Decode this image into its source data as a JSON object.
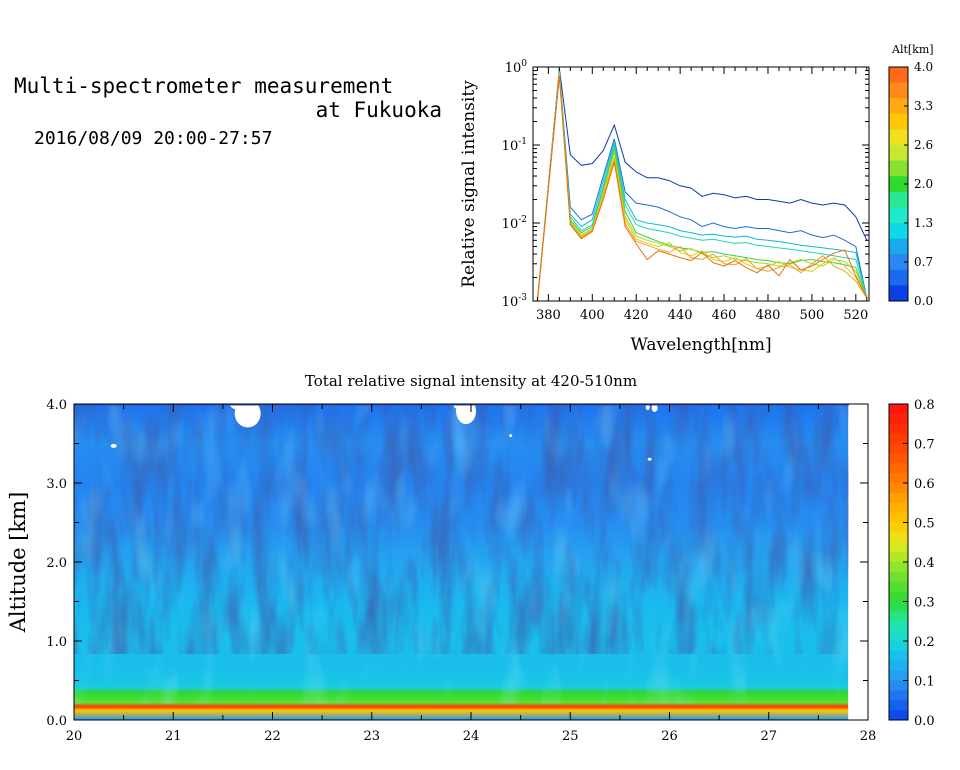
{
  "header": {
    "title_line1": "Multi-spectrometer measurement",
    "title_line2": "at Fukuoka",
    "subtitle": "2016/08/09 20:00-27:57"
  },
  "chart_data": [
    {
      "type": "line",
      "name": "spectra",
      "xlabel": "Wavelength[nm]",
      "ylabel": "Relative signal intensity",
      "xlim": [
        373,
        526
      ],
      "ylim": [
        0.001,
        1
      ],
      "y_scale": "log",
      "x_ticks": [
        380,
        400,
        420,
        440,
        460,
        480,
        500,
        520
      ],
      "y_ticks": [
        {
          "value": 1,
          "base": "10",
          "exp": "0"
        },
        {
          "value": 0.1,
          "base": "10",
          "exp": "-1"
        },
        {
          "value": 0.01,
          "base": "10",
          "exp": "-2"
        },
        {
          "value": 0.001,
          "base": "10",
          "exp": "-3"
        }
      ],
      "x": [
        375,
        385,
        390,
        395,
        400,
        405,
        410,
        415,
        420,
        425,
        430,
        435,
        440,
        445,
        450,
        455,
        460,
        465,
        470,
        475,
        480,
        485,
        490,
        495,
        500,
        505,
        510,
        515,
        520,
        525
      ],
      "series": [
        {
          "color": "#0a3ca8",
          "values": [
            0.001,
            0.95,
            0.075,
            0.055,
            0.058,
            0.085,
            0.18,
            0.06,
            0.045,
            0.038,
            0.038,
            0.035,
            0.03,
            0.028,
            0.022,
            0.024,
            0.023,
            0.021,
            0.022,
            0.02,
            0.02,
            0.019,
            0.018,
            0.02,
            0.018,
            0.017,
            0.018,
            0.017,
            0.012,
            0.006
          ]
        },
        {
          "color": "#1a6ed8",
          "values": [
            0.001,
            0.9,
            0.016,
            0.011,
            0.013,
            0.04,
            0.12,
            0.025,
            0.018,
            0.017,
            0.016,
            0.014,
            0.012,
            0.011,
            0.009,
            0.01,
            0.009,
            0.0085,
            0.009,
            0.0085,
            0.0085,
            0.008,
            0.0075,
            0.008,
            0.007,
            0.0065,
            0.007,
            0.006,
            0.005,
            0.0011
          ]
        },
        {
          "color": "#10b8d8",
          "values": [
            0.001,
            0.88,
            0.013,
            0.009,
            0.011,
            0.035,
            0.11,
            0.02,
            0.011,
            0.01,
            0.0095,
            0.009,
            0.008,
            0.0075,
            0.007,
            0.0072,
            0.0068,
            0.0066,
            0.0068,
            0.0062,
            0.006,
            0.0058,
            0.0055,
            0.0052,
            0.005,
            0.0048,
            0.0046,
            0.0044,
            0.0042,
            0.0011
          ]
        },
        {
          "color": "#20d8b0",
          "values": [
            0.001,
            0.86,
            0.012,
            0.008,
            0.0095,
            0.03,
            0.1,
            0.017,
            0.0095,
            0.0085,
            0.008,
            0.0075,
            0.0068,
            0.0064,
            0.006,
            0.0062,
            0.0058,
            0.0055,
            0.0056,
            0.0052,
            0.005,
            0.0048,
            0.0046,
            0.0044,
            0.0042,
            0.004,
            0.0038,
            0.0036,
            0.0034,
            0.0011
          ]
        },
        {
          "color": "#3ad040",
          "values": [
            0.001,
            0.84,
            0.011,
            0.0075,
            0.009,
            0.027,
            0.09,
            0.014,
            0.0075,
            0.0066,
            0.0058,
            0.0052,
            0.0048,
            0.0046,
            0.0042,
            0.0043,
            0.004,
            0.0038,
            0.0036,
            0.0034,
            0.0033,
            0.0031,
            0.003,
            0.0033,
            0.0034,
            0.0032,
            0.0031,
            0.0029,
            0.0027,
            0.0011
          ]
        },
        {
          "color": "#a8d820",
          "values": [
            0.001,
            0.82,
            0.0105,
            0.007,
            0.0085,
            0.025,
            0.08,
            0.012,
            0.0068,
            0.006,
            0.0055,
            0.005,
            0.0044,
            0.0047,
            0.004,
            0.0036,
            0.0038,
            0.0034,
            0.0033,
            0.0031,
            0.003,
            0.0028,
            0.0031,
            0.0034,
            0.003,
            0.0028,
            0.0034,
            0.0032,
            0.0024,
            0.0011
          ]
        },
        {
          "color": "#e8c818",
          "values": [
            0.001,
            0.8,
            0.01,
            0.0068,
            0.0082,
            0.023,
            0.07,
            0.011,
            0.0062,
            0.0055,
            0.005,
            0.0056,
            0.0042,
            0.0038,
            0.0044,
            0.0034,
            0.0032,
            0.0036,
            0.003,
            0.0026,
            0.0028,
            0.0032,
            0.0027,
            0.0025,
            0.0024,
            0.003,
            0.0036,
            0.0028,
            0.002,
            0.0011
          ]
        },
        {
          "color": "#f0a020",
          "values": [
            0.001,
            0.78,
            0.0098,
            0.0065,
            0.008,
            0.021,
            0.065,
            0.0098,
            0.0058,
            0.0052,
            0.0046,
            0.0042,
            0.005,
            0.0036,
            0.0034,
            0.004,
            0.003,
            0.0029,
            0.0035,
            0.0026,
            0.0024,
            0.0027,
            0.0029,
            0.0023,
            0.003,
            0.0038,
            0.0028,
            0.0024,
            0.0018,
            0.0011
          ]
        },
        {
          "color": "#e87010",
          "values": [
            0.001,
            0.76,
            0.0095,
            0.0063,
            0.0078,
            0.02,
            0.06,
            0.009,
            0.0054,
            0.0034,
            0.0044,
            0.004,
            0.0036,
            0.0033,
            0.0042,
            0.0031,
            0.0028,
            0.0033,
            0.0027,
            0.0023,
            0.0029,
            0.0021,
            0.0034,
            0.0025,
            0.0028,
            0.0034,
            0.0041,
            0.0045,
            0.0021,
            0.0011
          ]
        }
      ],
      "colorbar": {
        "label": "Alt[km]",
        "tick_labels": [
          "4.0",
          "3.3",
          "2.6",
          "2.0",
          "1.3",
          "0.7",
          "0.0"
        ],
        "colors": [
          "#ff6a1a",
          "#ff8a1a",
          "#ffaa10",
          "#ffc800",
          "#f0e020",
          "#c8e830",
          "#88e030",
          "#30d830",
          "#28e890",
          "#20e8c8",
          "#10d8e8",
          "#1aa8ef",
          "#2a88ef",
          "#1a6af0",
          "#0a40e8"
        ]
      }
    },
    {
      "type": "heatmap",
      "name": "time-altitude",
      "title": "Total relative signal intensity at 420-510nm",
      "ylabel": "Altitude [km]",
      "xlim": [
        20,
        28
      ],
      "ylim": [
        0,
        4
      ],
      "x_ticks": [
        "20",
        "21",
        "22",
        "23",
        "24",
        "25",
        "26",
        "27",
        "28"
      ],
      "y_ticks": [
        "4.0",
        "3.0",
        "2.0",
        "1.0",
        "0.0"
      ],
      "data_end_x": 27.8,
      "profile_altitudes_km": [
        0.0,
        0.12,
        0.17,
        0.22,
        0.28,
        0.34,
        0.42,
        0.5,
        0.7,
        1.0,
        1.5,
        2.0,
        2.5,
        3.0,
        3.5,
        4.0
      ],
      "profile_values": [
        0.1,
        0.5,
        0.72,
        0.35,
        0.32,
        0.3,
        0.18,
        0.17,
        0.16,
        0.16,
        0.15,
        0.12,
        0.09,
        0.08,
        0.09,
        0.06
      ],
      "colorbar": {
        "tick_labels": [
          "0.8",
          "0.7",
          "0.6",
          "0.5",
          "0.4",
          "0.3",
          "0.2",
          "0.1",
          "0.0"
        ],
        "stops": [
          {
            "v": 0.0,
            "c": "#0a40e8"
          },
          {
            "v": 0.05,
            "c": "#1a6af0"
          },
          {
            "v": 0.1,
            "c": "#2a96f0"
          },
          {
            "v": 0.15,
            "c": "#1ab8f0"
          },
          {
            "v": 0.2,
            "c": "#18d8d8"
          },
          {
            "v": 0.25,
            "c": "#20e8a0"
          },
          {
            "v": 0.3,
            "c": "#30d830"
          },
          {
            "v": 0.35,
            "c": "#60e030"
          },
          {
            "v": 0.4,
            "c": "#a0e828"
          },
          {
            "v": 0.45,
            "c": "#e8e820"
          },
          {
            "v": 0.5,
            "c": "#ffc800"
          },
          {
            "v": 0.55,
            "c": "#ffa800"
          },
          {
            "v": 0.6,
            "c": "#ff8000"
          },
          {
            "v": 0.65,
            "c": "#ff6000"
          },
          {
            "v": 0.7,
            "c": "#ff4000"
          },
          {
            "v": 0.8,
            "c": "#ff1010"
          }
        ]
      }
    }
  ]
}
